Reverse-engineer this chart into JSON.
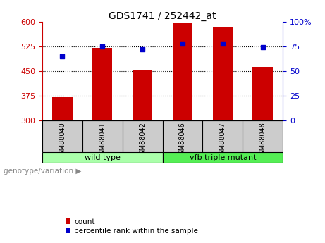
{
  "title": "GDS1741 / 252442_at",
  "samples": [
    "GSM88040",
    "GSM88041",
    "GSM88042",
    "GSM88046",
    "GSM88047",
    "GSM88048"
  ],
  "counts": [
    370,
    520,
    452,
    598,
    585,
    462
  ],
  "percentile_ranks": [
    65,
    75,
    72,
    78,
    78,
    74
  ],
  "ylim_left": [
    300,
    600
  ],
  "ylim_right": [
    0,
    100
  ],
  "yticks_left": [
    300,
    375,
    450,
    525,
    600
  ],
  "yticks_right": [
    0,
    25,
    50,
    75,
    100
  ],
  "bar_color": "#cc0000",
  "dot_color": "#0000cc",
  "group1_label": "wild type",
  "group2_label": "vfb triple mutant",
  "group1_color": "#aaffaa",
  "group2_color": "#55ee55",
  "legend_count_label": "count",
  "legend_pct_label": "percentile rank within the sample",
  "genotype_label": "genotype/variation",
  "bar_width": 0.5,
  "label_bg": "#cccccc",
  "label_divider": "#888888"
}
